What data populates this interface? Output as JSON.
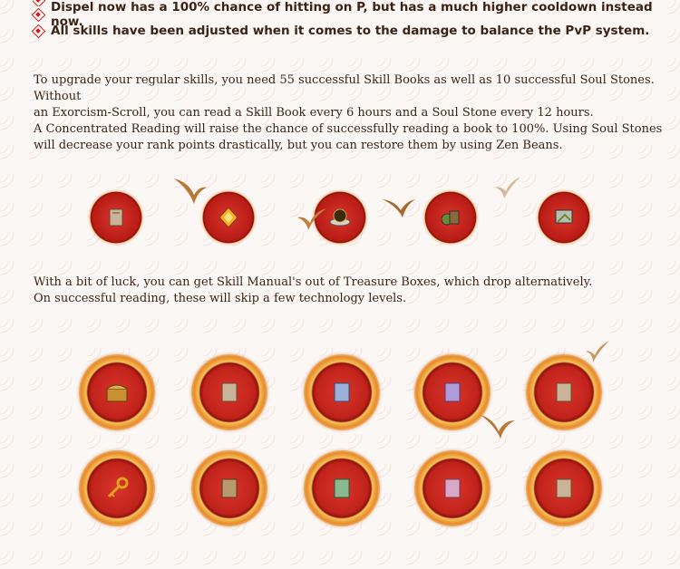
{
  "bullets": [
    "Dispel now has a 100% chance of hitting on P, but has a much higher cooldown instead now.",
    "All skills have been adjusted when it comes to the damage to balance the PvP system."
  ],
  "paragraphs": {
    "upgrade_line1": "To upgrade your regular skills, you need 55 successful Skill Books as well as 10 successful Soul Stones. Without",
    "upgrade_line2": "an Exorcism-Scroll, you can read a Skill Book every 6 hours and a Soul Stone every 12 hours.",
    "reading_line1": "A Concentrated Reading will raise the chance of successfully reading a book to 100%. Using Soul Stones",
    "reading_line2": "will decrease your rank points drastically, but you can restore them by using Zen Beans.",
    "luck_line1": "With a bit of luck, you can get Skill Manual's out of Treasure Boxes, which drop alternatively.",
    "luck_line2": "On successful reading, these will skip a few technology levels."
  },
  "icons": {
    "row_small": [
      "skill-book-icon",
      "soul-stone-icon",
      "concentrated-reading-icon",
      "exorcism-scroll-icon",
      "zen-bean-icon"
    ],
    "row_top": [
      "treasure-box-icon",
      "skill-manual-tan-icon",
      "skill-manual-blue-icon",
      "skill-manual-purple-icon",
      "skill-manual-tan-2-icon"
    ],
    "row_bottom": [
      "key-icon",
      "skill-manual-brown-icon",
      "skill-manual-green-icon",
      "skill-manual-pink-icon",
      "skill-manual-tan-3-icon"
    ]
  },
  "colors": {
    "accent": "#c8201c",
    "text": "#3a2418",
    "ring_gold": "#f3c25a"
  }
}
